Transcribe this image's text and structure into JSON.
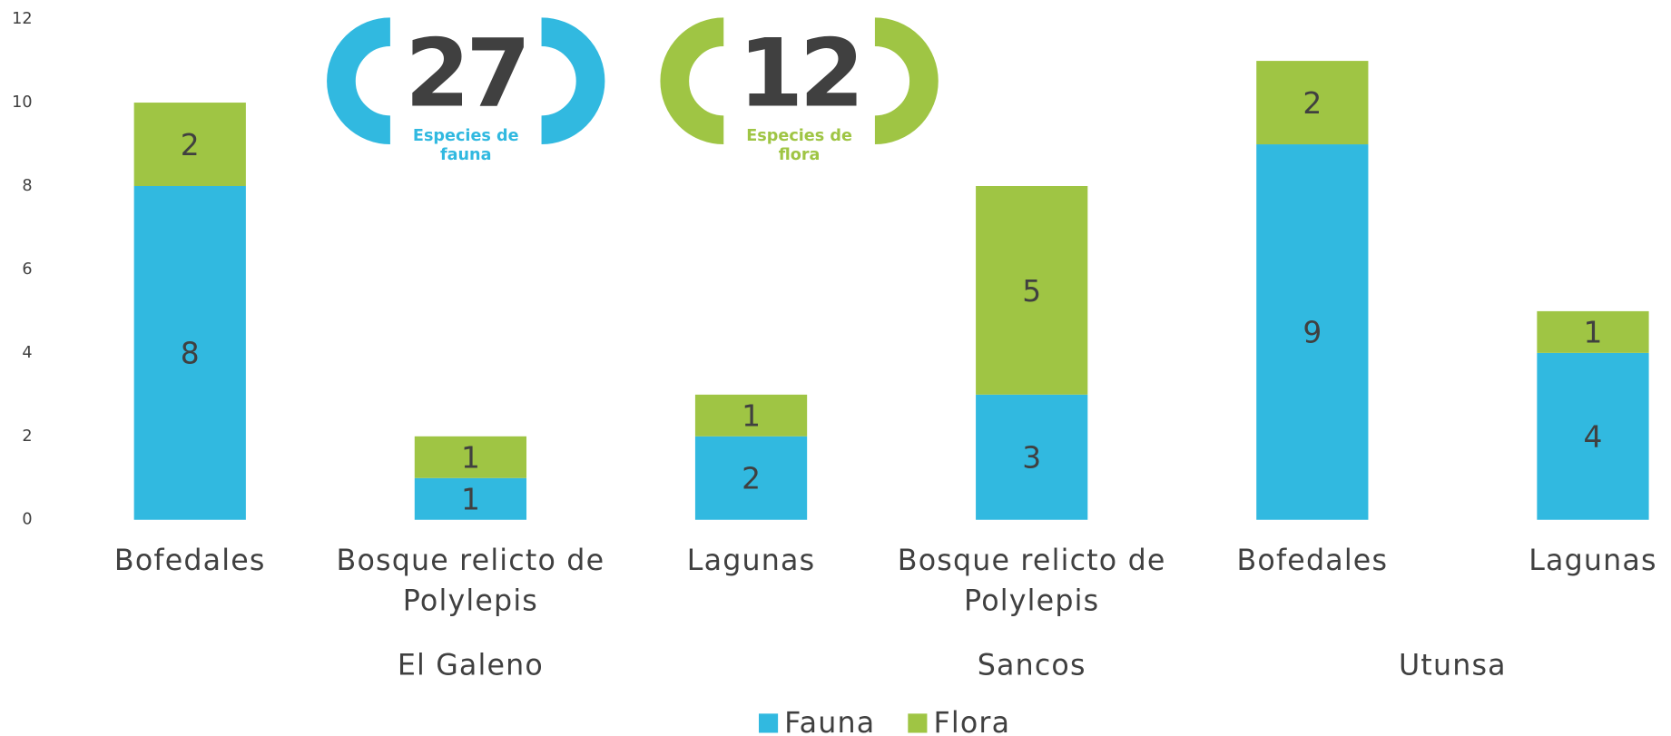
{
  "chart_data": {
    "type": "stacked_bar",
    "groups": [
      {
        "name": "El Galeno",
        "categories": [
          "Bofedales",
          "Bosque relicto de Polylepis",
          "Lagunas"
        ]
      },
      {
        "name": "Sancos",
        "categories": [
          "Bosque relicto de Polylepis"
        ]
      },
      {
        "name": "Utunsa",
        "categories": [
          "Bofedales",
          "Lagunas"
        ]
      }
    ],
    "series": [
      {
        "name": "Fauna",
        "color": "#31b9e0",
        "values": [
          8,
          1,
          2,
          3,
          9,
          4
        ]
      },
      {
        "name": "Flora",
        "color": "#9fc544",
        "values": [
          2,
          1,
          1,
          5,
          2,
          1
        ]
      }
    ],
    "ylim": [
      0,
      12
    ],
    "yticks": [
      0,
      2,
      4,
      6,
      8,
      10,
      12
    ],
    "legend": "bottom",
    "annotations": [
      {
        "value": 27,
        "label": "Especies de fauna",
        "color": "#31b9e0"
      },
      {
        "value": 12,
        "label": "Especies de flora",
        "color": "#9fc544"
      }
    ]
  }
}
